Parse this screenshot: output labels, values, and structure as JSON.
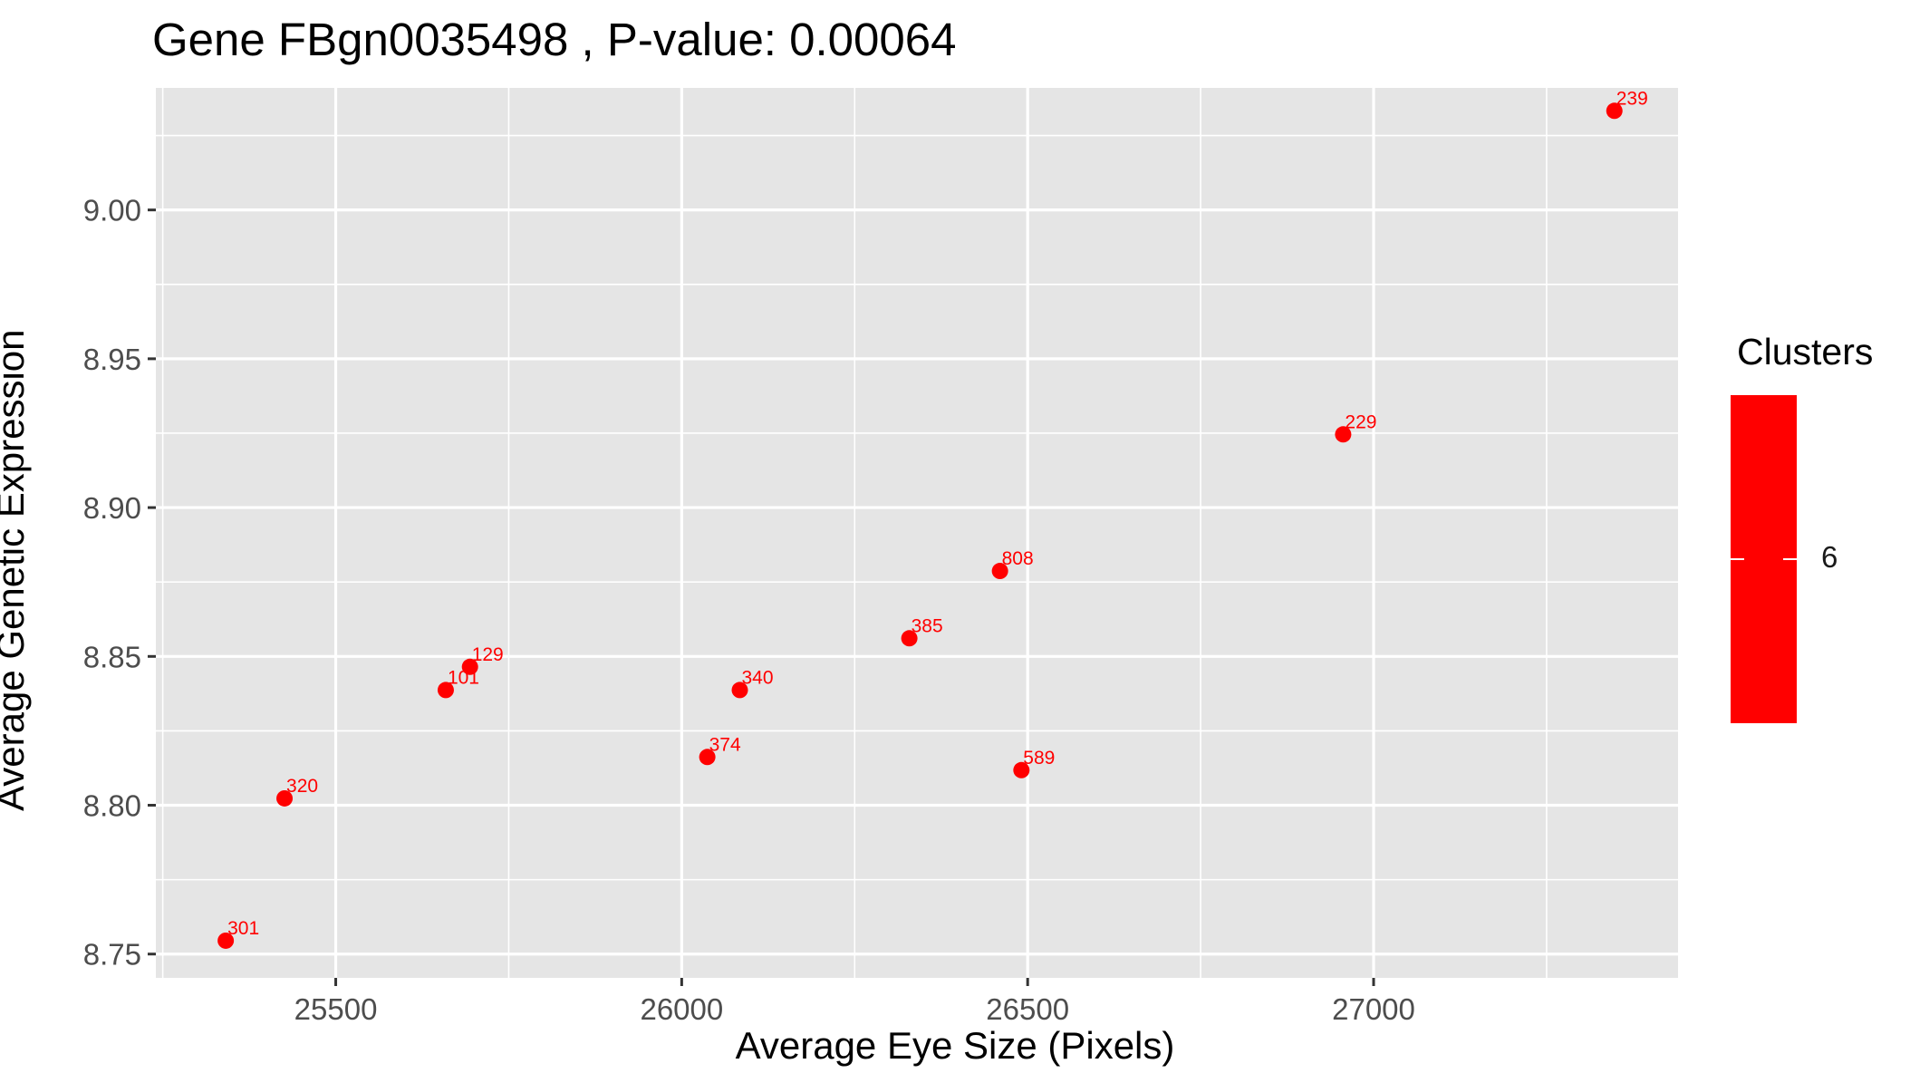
{
  "chart_data": {
    "type": "scatter",
    "title": "Gene FBgn0035498 , P-value: 0.00064",
    "xlabel": "Average Eye Size (Pixels)",
    "ylabel": "Average Genetic Expression",
    "xlim": [
      25240,
      27440
    ],
    "ylim": [
      8.742,
      9.041
    ],
    "x_ticks": [
      25500,
      26000,
      26500,
      27000
    ],
    "x_tick_labels": [
      "25500",
      "26000",
      "26500",
      "27000"
    ],
    "y_ticks": [
      8.75,
      8.8,
      8.85,
      8.9,
      8.95,
      9.0
    ],
    "y_tick_labels": [
      "8.75",
      "8.80",
      "8.85",
      "8.90",
      "8.95",
      "9.00"
    ],
    "grid": true,
    "legend": {
      "title": "Clusters",
      "position": "right",
      "labels": [
        "6"
      ]
    },
    "colors": {
      "point": "#ff0000",
      "label": "#ff0000",
      "panel": "#e5e5e5",
      "grid": "#ffffff"
    },
    "points": [
      {
        "x": 25341,
        "y": 8.7545,
        "label": "301"
      },
      {
        "x": 25426,
        "y": 8.8023,
        "label": "320"
      },
      {
        "x": 25659,
        "y": 8.8387,
        "label": "101"
      },
      {
        "x": 25694,
        "y": 8.8465,
        "label": "129"
      },
      {
        "x": 26037,
        "y": 8.8162,
        "label": "374"
      },
      {
        "x": 26084,
        "y": 8.8387,
        "label": "340"
      },
      {
        "x": 26329,
        "y": 8.8561,
        "label": "385"
      },
      {
        "x": 26460,
        "y": 8.8787,
        "label": "808"
      },
      {
        "x": 26491,
        "y": 8.8118,
        "label": "589"
      },
      {
        "x": 26956,
        "y": 8.9246,
        "label": "229"
      },
      {
        "x": 27348,
        "y": 9.0333,
        "label": "239"
      }
    ]
  }
}
